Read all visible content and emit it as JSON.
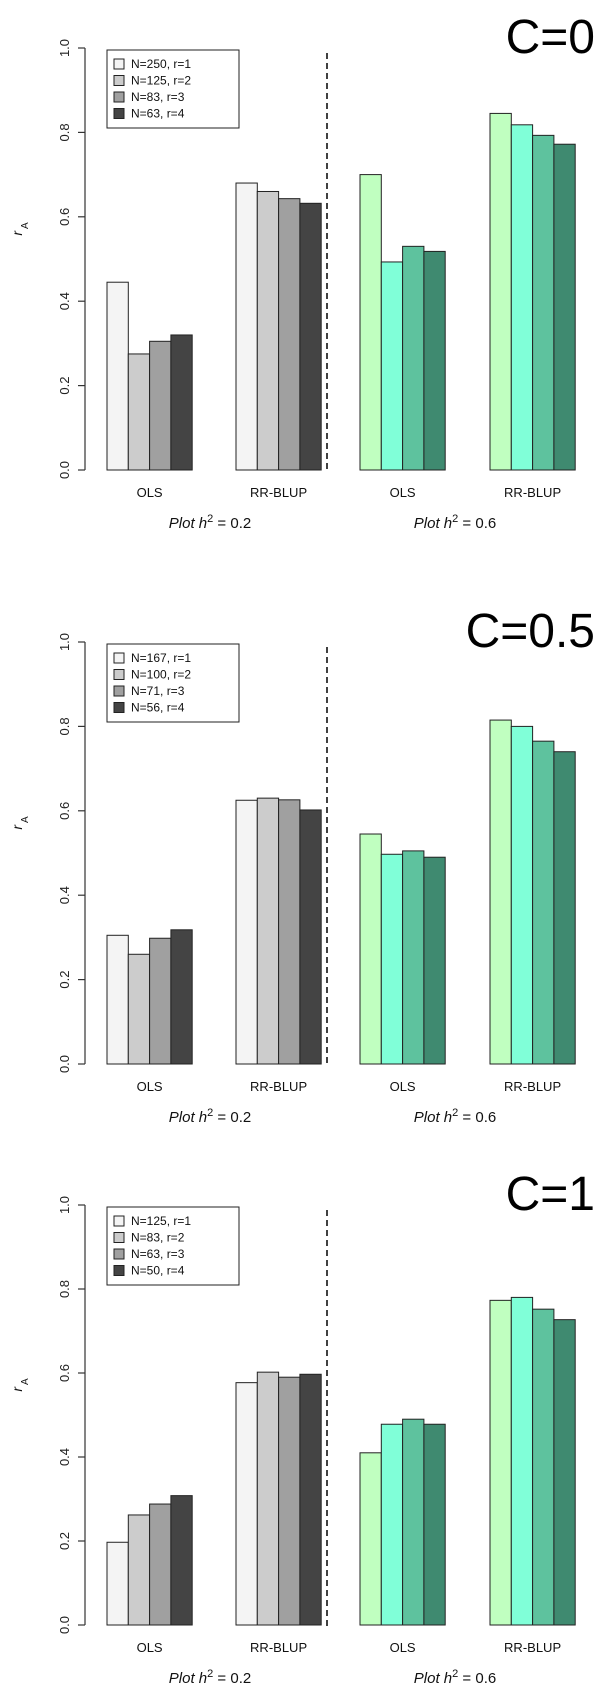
{
  "chart_data": [
    {
      "type": "bar",
      "corner_label": "C=0",
      "ylabel": "r",
      "ylabel_sub": "A",
      "ylim": [
        0,
        1
      ],
      "yticks": [
        "0.0",
        "0.2",
        "0.4",
        "0.6",
        "0.8",
        "1.0"
      ],
      "legend_position": "top-left",
      "legend": [
        "N=250, r=1",
        "N=125, r=2",
        "N=83, r=3",
        "N=63, r=4"
      ],
      "groups": [
        {
          "label_prefix": "Plot h",
          "label_sup": "2",
          "label_suffix": " = 0.2",
          "categories": [
            "OLS",
            "RR-BLUP"
          ],
          "palette": "gray",
          "values": [
            [
              0.445,
              0.275,
              0.305,
              0.32
            ],
            [
              0.68,
              0.66,
              0.643,
              0.632
            ]
          ]
        },
        {
          "label_prefix": "Plot h",
          "label_sup": "2",
          "label_suffix": " = 0.6",
          "categories": [
            "OLS",
            "RR-BLUP"
          ],
          "palette": "green",
          "values": [
            [
              0.7,
              0.493,
              0.53,
              0.518
            ],
            [
              0.845,
              0.818,
              0.793,
              0.772
            ]
          ]
        }
      ]
    },
    {
      "type": "bar",
      "corner_label": "C=0.5",
      "ylabel": "r",
      "ylabel_sub": "A",
      "ylim": [
        0,
        1
      ],
      "yticks": [
        "0.0",
        "0.2",
        "0.4",
        "0.6",
        "0.8",
        "1.0"
      ],
      "legend_position": "top-left",
      "legend": [
        "N=167, r=1",
        "N=100, r=2",
        "N=71, r=3",
        "N=56, r=4"
      ],
      "groups": [
        {
          "label_prefix": "Plot h",
          "label_sup": "2",
          "label_suffix": " = 0.2",
          "categories": [
            "OLS",
            "RR-BLUP"
          ],
          "palette": "gray",
          "values": [
            [
              0.305,
              0.26,
              0.298,
              0.318
            ],
            [
              0.625,
              0.63,
              0.626,
              0.602
            ]
          ]
        },
        {
          "label_prefix": "Plot h",
          "label_sup": "2",
          "label_suffix": " = 0.6",
          "categories": [
            "OLS",
            "RR-BLUP"
          ],
          "palette": "green",
          "values": [
            [
              0.545,
              0.497,
              0.505,
              0.49
            ],
            [
              0.815,
              0.8,
              0.765,
              0.74
            ]
          ]
        }
      ]
    },
    {
      "type": "bar",
      "corner_label": "C=1",
      "ylabel": "r",
      "ylabel_sub": "A",
      "ylim": [
        0,
        1
      ],
      "yticks": [
        "0.0",
        "0.2",
        "0.4",
        "0.6",
        "0.8",
        "1.0"
      ],
      "legend_position": "top-left",
      "legend": [
        "N=125, r=1",
        "N=83, r=2",
        "N=63, r=3",
        "N=50, r=4"
      ],
      "groups": [
        {
          "label_prefix": "Plot h",
          "label_sup": "2",
          "label_suffix": " = 0.2",
          "categories": [
            "OLS",
            "RR-BLUP"
          ],
          "palette": "gray",
          "values": [
            [
              0.197,
              0.262,
              0.288,
              0.308
            ],
            [
              0.577,
              0.602,
              0.59,
              0.597
            ]
          ]
        },
        {
          "label_prefix": "Plot h",
          "label_sup": "2",
          "label_suffix": " = 0.6",
          "categories": [
            "OLS",
            "RR-BLUP"
          ],
          "palette": "green",
          "values": [
            [
              0.41,
              0.478,
              0.49,
              0.478
            ],
            [
              0.773,
              0.78,
              0.752,
              0.727
            ]
          ]
        }
      ]
    }
  ],
  "colors": {
    "gray": [
      "#f4f4f4",
      "#cccccc",
      "#a0a0a0",
      "#444444"
    ],
    "green": [
      "#c0ffc0",
      "#80ffd8",
      "#5ec29e",
      "#3f8a70"
    ],
    "bar_stroke": "#222222",
    "axis": "#333333"
  }
}
